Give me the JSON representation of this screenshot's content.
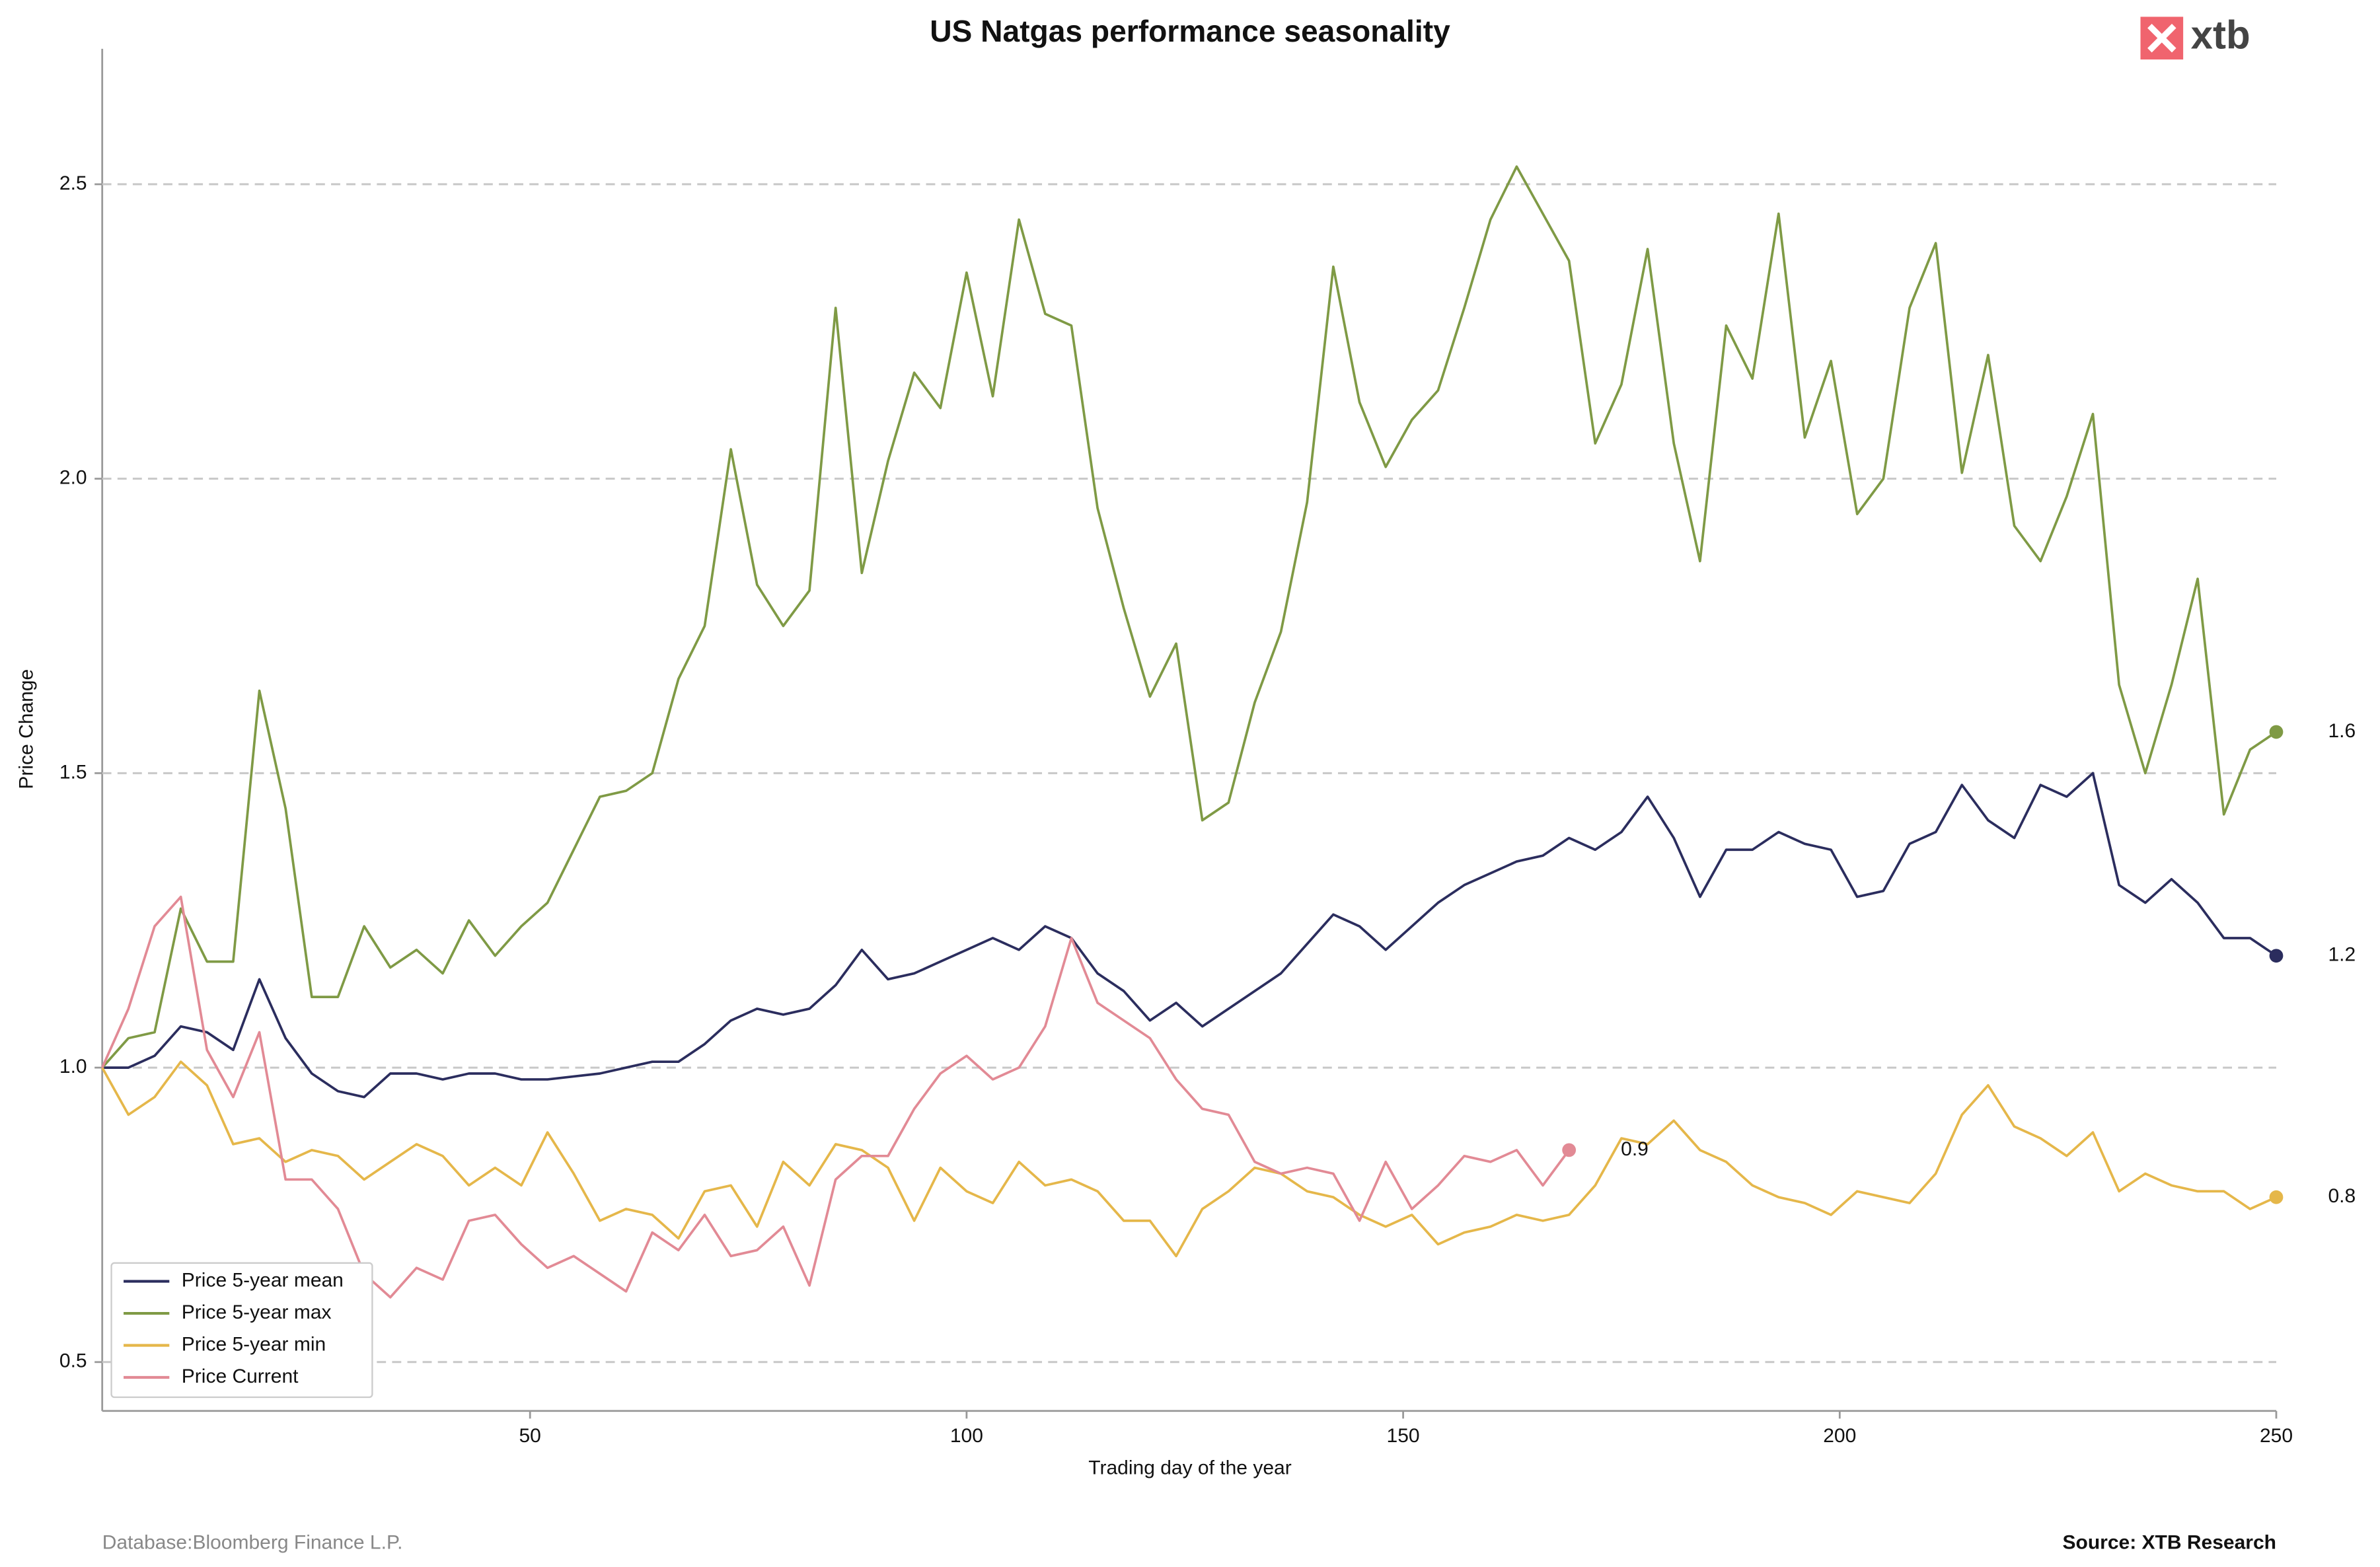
{
  "chart_data": {
    "type": "line",
    "title": "US Natgas performance seasonality",
    "x_label": "Trading day of the year",
    "y_label": "Price Change",
    "note": "Database:Bloomberg Finance L.P.",
    "source": "Source: XTB Research",
    "brand": "xtb",
    "grid": true,
    "legend": "lower left",
    "xlim": [
      1,
      250
    ],
    "ylim": [
      0.417,
      2.73
    ],
    "xticks": [
      50,
      100,
      150,
      200,
      250
    ],
    "yticks": [
      0.5,
      {
        "value": 1,
        "label": "1.0"
      },
      1.5,
      {
        "value": 2,
        "label": "2.0"
      },
      2.5
    ],
    "x": [
      1,
      4,
      7,
      10,
      13,
      16,
      19,
      22,
      25,
      28,
      31,
      34,
      37,
      40,
      43,
      46,
      49,
      52,
      55,
      58,
      61,
      64,
      67,
      70,
      73,
      76,
      79,
      82,
      85,
      88,
      91,
      94,
      97,
      100,
      103,
      106,
      109,
      112,
      115,
      118,
      121,
      124,
      127,
      130,
      133,
      136,
      139,
      142,
      145,
      148,
      151,
      154,
      157,
      160,
      163,
      166,
      169,
      172,
      175,
      178,
      181,
      184,
      187,
      190,
      193,
      196,
      199,
      202,
      205,
      208,
      211,
      214,
      217,
      220,
      223,
      226,
      229,
      232,
      235,
      238,
      241,
      244,
      247,
      250
    ],
    "series": [
      {
        "name": "Price 5-year mean",
        "color": "#2b2d5e",
        "end_label": "1.2",
        "values": [
          1.0,
          1.0,
          1.02,
          1.07,
          1.06,
          1.03,
          1.15,
          1.05,
          0.99,
          0.96,
          0.95,
          0.99,
          0.99,
          0.98,
          0.99,
          0.99,
          0.98,
          0.98,
          0.985,
          0.99,
          1.0,
          1.01,
          1.01,
          1.04,
          1.08,
          1.1,
          1.09,
          1.1,
          1.14,
          1.2,
          1.15,
          1.16,
          1.18,
          1.2,
          1.22,
          1.2,
          1.24,
          1.22,
          1.16,
          1.13,
          1.08,
          1.11,
          1.07,
          1.1,
          1.13,
          1.16,
          1.21,
          1.26,
          1.24,
          1.2,
          1.24,
          1.28,
          1.31,
          1.33,
          1.35,
          1.36,
          1.39,
          1.37,
          1.4,
          1.46,
          1.39,
          1.29,
          1.37,
          1.37,
          1.4,
          1.38,
          1.37,
          1.29,
          1.3,
          1.38,
          1.4,
          1.48,
          1.42,
          1.39,
          1.48,
          1.46,
          1.5,
          1.31,
          1.28,
          1.32,
          1.28,
          1.22,
          1.22,
          1.19
        ]
      },
      {
        "name": "Price 5-year max",
        "color": "#7f9a45",
        "end_label": "1.6",
        "values": [
          1.0,
          1.05,
          1.06,
          1.27,
          1.18,
          1.18,
          1.64,
          1.44,
          1.12,
          1.12,
          1.24,
          1.17,
          1.2,
          1.16,
          1.25,
          1.19,
          1.24,
          1.28,
          1.37,
          1.46,
          1.47,
          1.5,
          1.66,
          1.75,
          2.05,
          1.82,
          1.75,
          1.81,
          2.29,
          1.84,
          2.03,
          2.18,
          2.12,
          2.35,
          2.14,
          2.44,
          2.28,
          2.26,
          1.95,
          1.78,
          1.63,
          1.72,
          1.42,
          1.45,
          1.62,
          1.74,
          1.96,
          2.36,
          2.13,
          2.02,
          2.1,
          2.15,
          2.29,
          2.44,
          2.53,
          2.45,
          2.37,
          2.06,
          2.16,
          2.39,
          2.06,
          1.86,
          2.26,
          2.17,
          2.45,
          2.07,
          2.2,
          1.94,
          2.0,
          2.29,
          2.4,
          2.01,
          2.21,
          1.92,
          1.86,
          1.97,
          2.11,
          1.65,
          1.5,
          1.65,
          1.83,
          1.43,
          1.54,
          1.57
        ]
      },
      {
        "name": "Price 5-year min",
        "color": "#e5b74a",
        "end_label": "0.8",
        "values": [
          1.0,
          0.92,
          0.95,
          1.01,
          0.97,
          0.87,
          0.88,
          0.84,
          0.86,
          0.85,
          0.81,
          0.84,
          0.87,
          0.85,
          0.8,
          0.83,
          0.8,
          0.89,
          0.82,
          0.74,
          0.76,
          0.75,
          0.71,
          0.79,
          0.8,
          0.73,
          0.84,
          0.8,
          0.87,
          0.86,
          0.83,
          0.74,
          0.83,
          0.79,
          0.77,
          0.84,
          0.8,
          0.81,
          0.79,
          0.74,
          0.74,
          0.68,
          0.76,
          0.79,
          0.83,
          0.82,
          0.79,
          0.78,
          0.75,
          0.73,
          0.75,
          0.7,
          0.72,
          0.73,
          0.75,
          0.74,
          0.75,
          0.8,
          0.88,
          0.87,
          0.91,
          0.86,
          0.84,
          0.8,
          0.78,
          0.77,
          0.75,
          0.79,
          0.78,
          0.77,
          0.82,
          0.92,
          0.97,
          0.9,
          0.88,
          0.85,
          0.89,
          0.79,
          0.82,
          0.8,
          0.79,
          0.79,
          0.76,
          0.78
        ]
      },
      {
        "name": "Price Current",
        "color": "#e28a95",
        "end_label": "0.9",
        "values": [
          1.0,
          1.1,
          1.24,
          1.29,
          1.03,
          0.95,
          1.06,
          0.81,
          0.81,
          0.76,
          0.65,
          0.61,
          0.66,
          0.64,
          0.74,
          0.75,
          0.7,
          0.66,
          0.68,
          0.65,
          0.62,
          0.72,
          0.69,
          0.75,
          0.68,
          0.69,
          0.73,
          0.63,
          0.81,
          0.85,
          0.85,
          0.93,
          0.99,
          1.02,
          0.98,
          1.0,
          1.07,
          1.22,
          1.11,
          1.08,
          1.05,
          0.98,
          0.93,
          0.92,
          0.84,
          0.82,
          0.83,
          0.82,
          0.74,
          0.84,
          0.76,
          0.8,
          0.85,
          0.84,
          0.86,
          0.8,
          0.86,
          null,
          null,
          null,
          null,
          null,
          null,
          null,
          null,
          null,
          null,
          null,
          null,
          null,
          null,
          null,
          null,
          null,
          null,
          null,
          null,
          null,
          null,
          null,
          null,
          null,
          null,
          null
        ]
      }
    ]
  }
}
